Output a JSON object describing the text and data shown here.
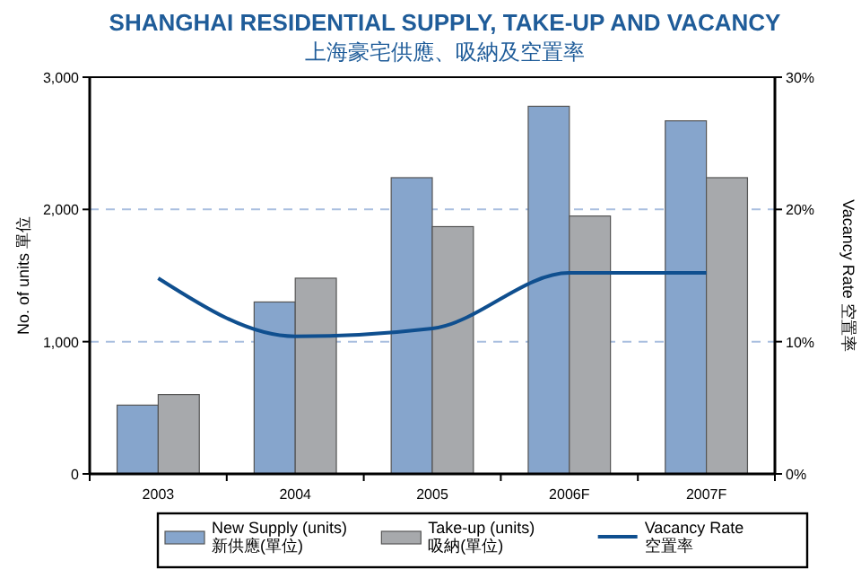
{
  "chart_data": {
    "type": "bar",
    "title": "SHANGHAI RESIDENTIAL SUPPLY, TAKE-UP AND VACANCY",
    "subtitle": "上海豪宅供應、吸納及空置率",
    "ylabel": "No. of units 單位",
    "y2label": "Vacancy Rate 空置率",
    "categories": [
      "2003",
      "2004",
      "2005",
      "2006F",
      "2007F"
    ],
    "series": [
      {
        "name": "New Supply (units)\n新供應(單位)",
        "color": "#86a5cc",
        "values": [
          520,
          1300,
          2240,
          2780,
          2670
        ]
      },
      {
        "name": "Take-up (units)\n吸納(單位)",
        "color": "#a7a9ac",
        "values": [
          600,
          1480,
          1870,
          1950,
          2240
        ]
      },
      {
        "name": "Vacancy Rate\n空置率",
        "type": "line",
        "axis": "y2",
        "color": "#0f4f8f",
        "values": [
          14.8,
          10.4,
          11.0,
          15.2,
          15.2
        ]
      }
    ],
    "ylim": [
      0,
      3000
    ],
    "yticks": [
      {
        "value": 0,
        "label": "0"
      },
      {
        "value": 1000,
        "label": "1,000"
      },
      {
        "value": 2000,
        "label": "2,000"
      },
      {
        "value": 3000,
        "label": "3,000"
      }
    ],
    "y2lim": [
      0,
      30
    ],
    "y2ticks": [
      {
        "value": 0,
        "label": "0%"
      },
      {
        "value": 10,
        "label": "10%"
      },
      {
        "value": 20,
        "label": "20%"
      },
      {
        "value": 30,
        "label": "30%"
      }
    ],
    "grid": "y",
    "legend": "bottom"
  }
}
